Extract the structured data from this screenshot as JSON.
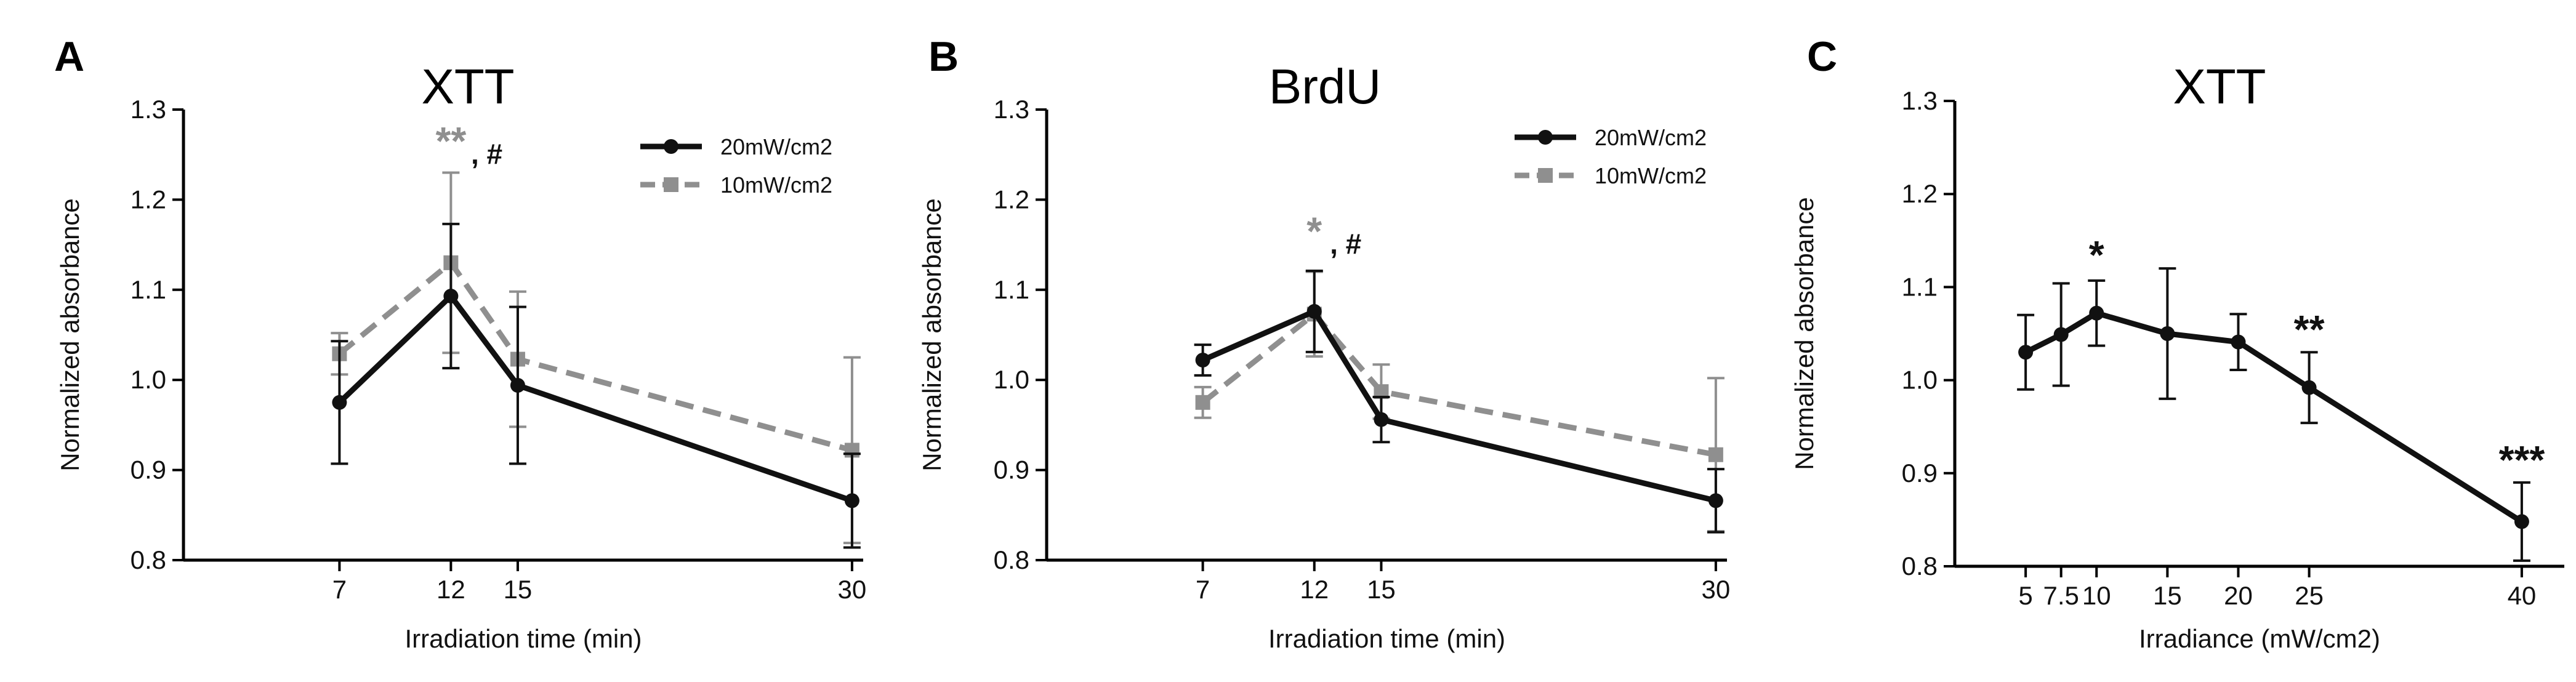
{
  "colors": {
    "black_series": "#111111",
    "gray_series": "#8f8f8f",
    "axis": "#000000"
  },
  "chart_data": [
    {
      "panel": "A",
      "type": "line",
      "title": "XTT",
      "xlabel": "Irradiation time (min)",
      "ylabel": "Normalized absorbance",
      "xlim": [
        0,
        30.5
      ],
      "ylim": [
        0.8,
        1.3
      ],
      "xticks": [
        7,
        12,
        15,
        30
      ],
      "yticks": [
        0.8,
        0.9,
        1.0,
        1.1,
        1.2,
        1.3
      ],
      "ytick_labels": [
        "0.8",
        "0.9",
        "1.0",
        "1.1",
        "1.2",
        "1.3"
      ],
      "grid": false,
      "legend_position": "top-right",
      "series": [
        {
          "name": "20mW/cm2",
          "style": "solid",
          "marker": "circle",
          "color": "#111111",
          "x": [
            7,
            12,
            15,
            30
          ],
          "y": [
            0.975,
            1.093,
            0.994,
            0.866
          ],
          "err": [
            0.068,
            0.08,
            0.087,
            0.052
          ]
        },
        {
          "name": "10mW/cm2",
          "style": "dashed",
          "marker": "square",
          "color": "#8f8f8f",
          "x": [
            7,
            12,
            15,
            30
          ],
          "y": [
            1.029,
            1.13,
            1.023,
            0.922
          ],
          "err": [
            0.023,
            0.1,
            0.075,
            0.103
          ]
        }
      ],
      "annotations": [
        {
          "text": "**",
          "x": 12,
          "y": 1.25,
          "color": "#8f8f8f",
          "size": "large"
        },
        {
          "text": ", #",
          "x": 12.9,
          "y": 1.24,
          "color": "#111111",
          "size": "small"
        }
      ]
    },
    {
      "panel": "B",
      "type": "line",
      "title": "BrdU",
      "xlabel": "Irradiation time (min)",
      "ylabel": "Normalized absorbance",
      "xlim": [
        0,
        30.5
      ],
      "ylim": [
        0.8,
        1.3
      ],
      "xticks": [
        7,
        12,
        15,
        30
      ],
      "yticks": [
        0.8,
        0.9,
        1.0,
        1.1,
        1.2,
        1.3
      ],
      "ytick_labels": [
        "0.8",
        "0.9",
        "1.0",
        "1.1",
        "1.2",
        "1.3"
      ],
      "grid": false,
      "legend_position": "top-right",
      "series": [
        {
          "name": "20mW/cm2",
          "style": "solid",
          "marker": "circle",
          "color": "#111111",
          "x": [
            7,
            12,
            15,
            30
          ],
          "y": [
            1.022,
            1.076,
            0.956,
            0.866
          ],
          "err": [
            0.017,
            0.045,
            0.025,
            0.035
          ]
        },
        {
          "name": "10mW/cm2",
          "style": "dashed",
          "marker": "square",
          "color": "#8f8f8f",
          "x": [
            7,
            12,
            15,
            30
          ],
          "y": [
            0.975,
            1.073,
            0.987,
            0.917
          ],
          "err": [
            0.017,
            0.047,
            0.03,
            0.085
          ]
        }
      ],
      "annotations": [
        {
          "text": "*",
          "x": 12,
          "y": 1.15,
          "color": "#8f8f8f",
          "size": "large"
        },
        {
          "text": ", #",
          "x": 12.7,
          "y": 1.14,
          "color": "#111111",
          "size": "small"
        }
      ]
    },
    {
      "panel": "C",
      "type": "line",
      "title": "XTT",
      "xlabel": "Irradiance (mW/cm2)",
      "ylabel": "Normalized absorbance",
      "xlim": [
        0,
        43
      ],
      "ylim": [
        0.8,
        1.3
      ],
      "xticks": [
        5,
        7.5,
        10,
        15,
        20,
        25,
        40
      ],
      "xtick_labels": [
        "5",
        "7.5",
        "10",
        "15",
        "20",
        "25",
        "40"
      ],
      "yticks": [
        0.8,
        0.9,
        1.0,
        1.1,
        1.2,
        1.3
      ],
      "ytick_labels": [
        "0.8",
        "0.9",
        "1.0",
        "1.1",
        "1.2",
        "1.3"
      ],
      "grid": false,
      "series": [
        {
          "color": "#111111",
          "style": "solid",
          "marker": "circle",
          "x": [
            5,
            7.5,
            10,
            15,
            20,
            25,
            40
          ],
          "y": [
            1.03,
            1.049,
            1.072,
            1.05,
            1.041,
            0.992,
            0.848
          ],
          "err": [
            0.04,
            0.055,
            0.035,
            0.07,
            0.03,
            0.038,
            0.042
          ]
        }
      ],
      "annotations": [
        {
          "text": "*",
          "x": 10,
          "y": 1.12,
          "color": "#111111",
          "size": "large"
        },
        {
          "text": "**",
          "x": 25,
          "y": 1.04,
          "color": "#111111",
          "size": "large"
        },
        {
          "text": "***",
          "x": 40,
          "y": 0.9,
          "color": "#111111",
          "size": "large"
        }
      ]
    }
  ]
}
